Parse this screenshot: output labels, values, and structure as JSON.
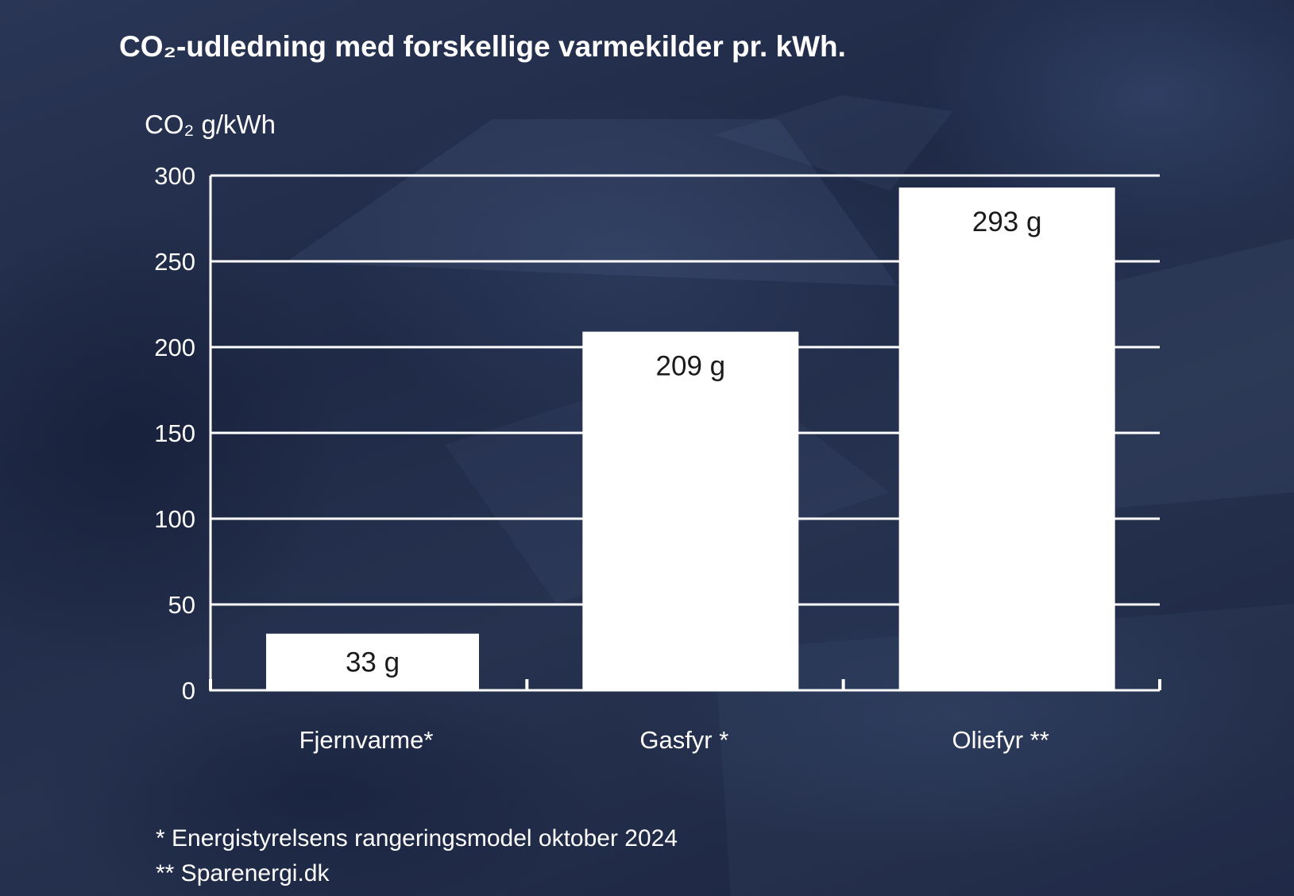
{
  "chart_data": {
    "type": "bar",
    "title": "CO₂-udledning med forskellige varmekilder pr. kWh.",
    "ylabel": "CO₂ g/kWh",
    "xlabel": "",
    "categories": [
      "Fjernvarme*",
      "Gasfyr *",
      "Oliefyr **"
    ],
    "values": [
      33,
      209,
      293
    ],
    "data_labels": [
      "33 g",
      "209 g",
      "293 g"
    ],
    "ylim": [
      0,
      300
    ],
    "yticks": [
      0,
      50,
      100,
      150,
      200,
      250,
      300
    ],
    "grid": true,
    "legend": "none"
  },
  "footnotes": [
    "* Energistyrelsens rangeringsmodel oktober 2024",
    "** Sparenergi.dk"
  ],
  "colors": {
    "background": "#222c49",
    "bar": "#ffffff",
    "grid": "#ffffff",
    "text": "#ffffff",
    "bar_label": "#1a1a1a"
  }
}
